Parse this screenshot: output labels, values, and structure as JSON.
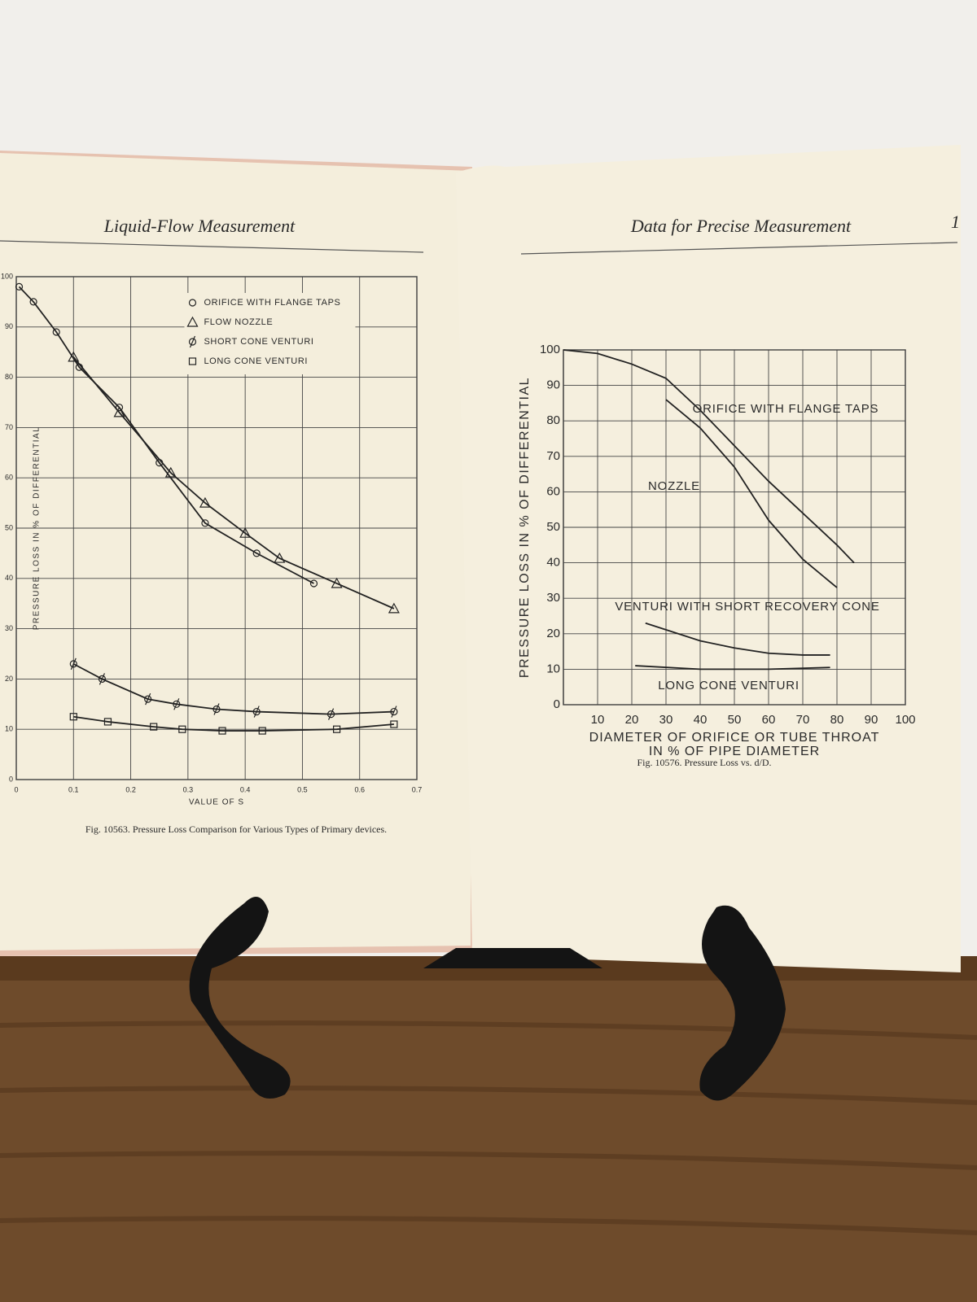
{
  "pages": [
    {
      "header": "Liquid-Flow Measurement"
    },
    {
      "header": "Data for Precise Measurement",
      "page_number": "1"
    }
  ],
  "chart_data": [
    {
      "type": "line",
      "markers": true,
      "caption": "Fig. 10563. Pressure Loss Comparison for Various Types of Primary devices.",
      "x_label": "VALUE OF S",
      "y_label": "PRESSURE LOSS IN % OF DIFFERENTIAL",
      "xlim": [
        0,
        0.7
      ],
      "ylim": [
        0,
        100
      ],
      "xticks": [
        0,
        0.1,
        0.2,
        0.3,
        0.4,
        0.5,
        0.6,
        0.7
      ],
      "yticks": [
        0,
        10,
        20,
        30,
        40,
        50,
        60,
        70,
        80,
        90,
        100
      ],
      "grid": true,
      "legend": "upper right",
      "series": [
        {
          "name": "ORIFICE WITH FLANGE TAPS",
          "marker": "circle",
          "color": "#222222",
          "x": [
            0.005,
            0.03,
            0.07,
            0.11,
            0.18,
            0.25,
            0.33,
            0.42,
            0.52
          ],
          "values": [
            98,
            95,
            89,
            82,
            74,
            63,
            51,
            45,
            39
          ]
        },
        {
          "name": "FLOW NOZZLE",
          "marker": "triangle",
          "color": "#222222",
          "x": [
            0.1,
            0.18,
            0.27,
            0.33,
            0.4,
            0.46,
            0.56,
            0.66
          ],
          "values": [
            84,
            73,
            61,
            55,
            49,
            44,
            39,
            34
          ]
        },
        {
          "name": "SHORT CONE VENTURI",
          "marker": "phi",
          "color": "#222222",
          "x": [
            0.1,
            0.15,
            0.23,
            0.28,
            0.35,
            0.42,
            0.55,
            0.66
          ],
          "values": [
            23,
            20,
            16,
            15,
            14,
            13.5,
            13,
            13.5
          ]
        },
        {
          "name": "LONG CONE VENTURI",
          "marker": "square",
          "color": "#222222",
          "x": [
            0.1,
            0.16,
            0.24,
            0.29,
            0.36,
            0.43,
            0.56,
            0.66
          ],
          "values": [
            12.5,
            11.5,
            10.5,
            10,
            9.7,
            9.7,
            10,
            11
          ]
        }
      ]
    },
    {
      "type": "line",
      "markers": false,
      "caption": "Fig. 10576. Pressure Loss vs. d/D.",
      "x_label": [
        "DIAMETER OF ORIFICE OR TUBE THROAT",
        "IN % OF PIPE DIAMETER"
      ],
      "y_label": "PRESSURE LOSS IN % OF DIFFERENTIAL",
      "xlim": [
        0,
        100
      ],
      "ylim": [
        0,
        100
      ],
      "xticks": [
        10,
        20,
        30,
        40,
        50,
        60,
        70,
        80,
        90,
        100
      ],
      "yticks": [
        0,
        10,
        20,
        30,
        40,
        50,
        60,
        70,
        80,
        90,
        100
      ],
      "grid": true,
      "series": [
        {
          "name": "ORIFICE WITH FLANGE TAPS",
          "color": "#222222",
          "x": [
            0,
            10,
            20,
            30,
            40,
            50,
            60,
            70,
            80,
            85
          ],
          "values": [
            100,
            99,
            96,
            92,
            83,
            73,
            63,
            54,
            45,
            40
          ]
        },
        {
          "name": "NOZZLE",
          "color": "#222222",
          "x": [
            30,
            40,
            50,
            60,
            70,
            80
          ],
          "values": [
            86,
            78,
            67,
            52,
            41,
            33
          ]
        },
        {
          "name": "VENTURI WITH SHORT RECOVERY CONE",
          "color": "#222222",
          "x": [
            24,
            40,
            50,
            60,
            70,
            78
          ],
          "values": [
            23,
            18,
            16,
            14.5,
            14,
            14
          ]
        },
        {
          "name": "LONG CONE VENTURI",
          "color": "#222222",
          "x": [
            21,
            40,
            60,
            78
          ],
          "values": [
            11,
            10,
            10,
            10.5
          ]
        }
      ]
    }
  ]
}
